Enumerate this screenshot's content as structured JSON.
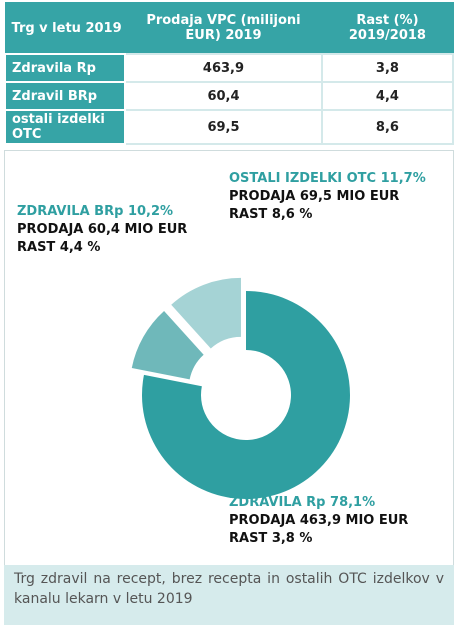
{
  "table": {
    "header": [
      "Trg v letu 2019",
      "Prodaja VPC (milijoni EUR) 2019",
      "Rast (%) 2019/2018"
    ],
    "rows": [
      [
        "Zdravila Rp",
        "463,9",
        "3,8"
      ],
      [
        "Zdravil BRp",
        "60,4",
        "4,4"
      ],
      [
        "ostali izdelki OTC",
        "69,5",
        "8,6"
      ]
    ]
  },
  "chart_data": {
    "type": "pie",
    "donut": true,
    "categories": [
      "ZDRAVILA Rp",
      "ZDRAVILA BRp",
      "OSTALI IZDELKI OTC"
    ],
    "values": [
      78.1,
      10.2,
      11.7
    ],
    "value_labels": [
      "78,1%",
      "10,2%",
      "11,7%"
    ],
    "colors": [
      "#2f9fa1",
      "#6fb8ba",
      "#a5d3d5"
    ],
    "annotations": [
      [
        "PRODAJA 463,9 MIO EUR",
        "RAST 3,8 %"
      ],
      [
        "PRODAJA 60,4 MIO EUR",
        "RAST 4,4 %"
      ],
      [
        "PRODAJA 69,5 MIO EUR",
        "RAST 8,6 %"
      ]
    ]
  },
  "caption": "Trg zdravil na recept, brez recepta in ostalih OTC izdelkov v kanalu lekarn v letu 2019"
}
